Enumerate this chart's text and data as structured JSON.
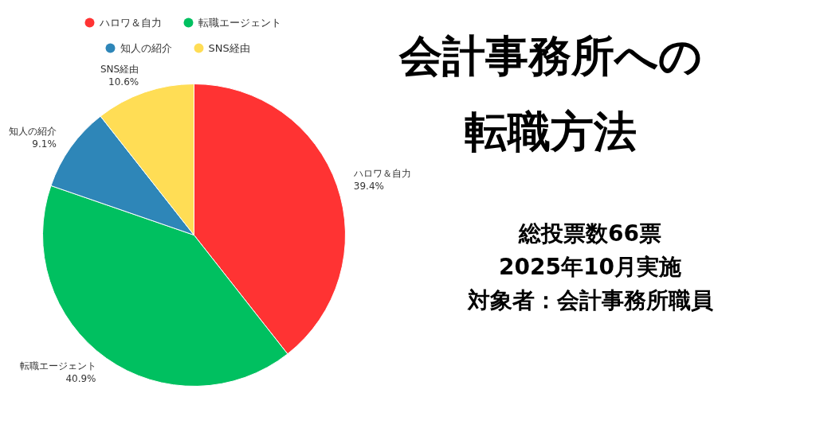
{
  "chart_data": {
    "type": "pie",
    "title": "会計事務所への転職方法",
    "categories": [
      "ハロワ＆自力",
      "転職エージェント",
      "知人の紹介",
      "SNS経由"
    ],
    "values": [
      39.4,
      40.9,
      9.1,
      10.6
    ],
    "colors": [
      "#ff3333",
      "#00c060",
      "#2e86b8",
      "#ffdd55"
    ],
    "value_labels": [
      "39.4%",
      "40.9%",
      "9.1%",
      "10.6%"
    ],
    "legend": "top",
    "annotations": [
      "総投票数66票",
      "2025年10月実施",
      "対象者：会計事務所職員"
    ]
  }
}
